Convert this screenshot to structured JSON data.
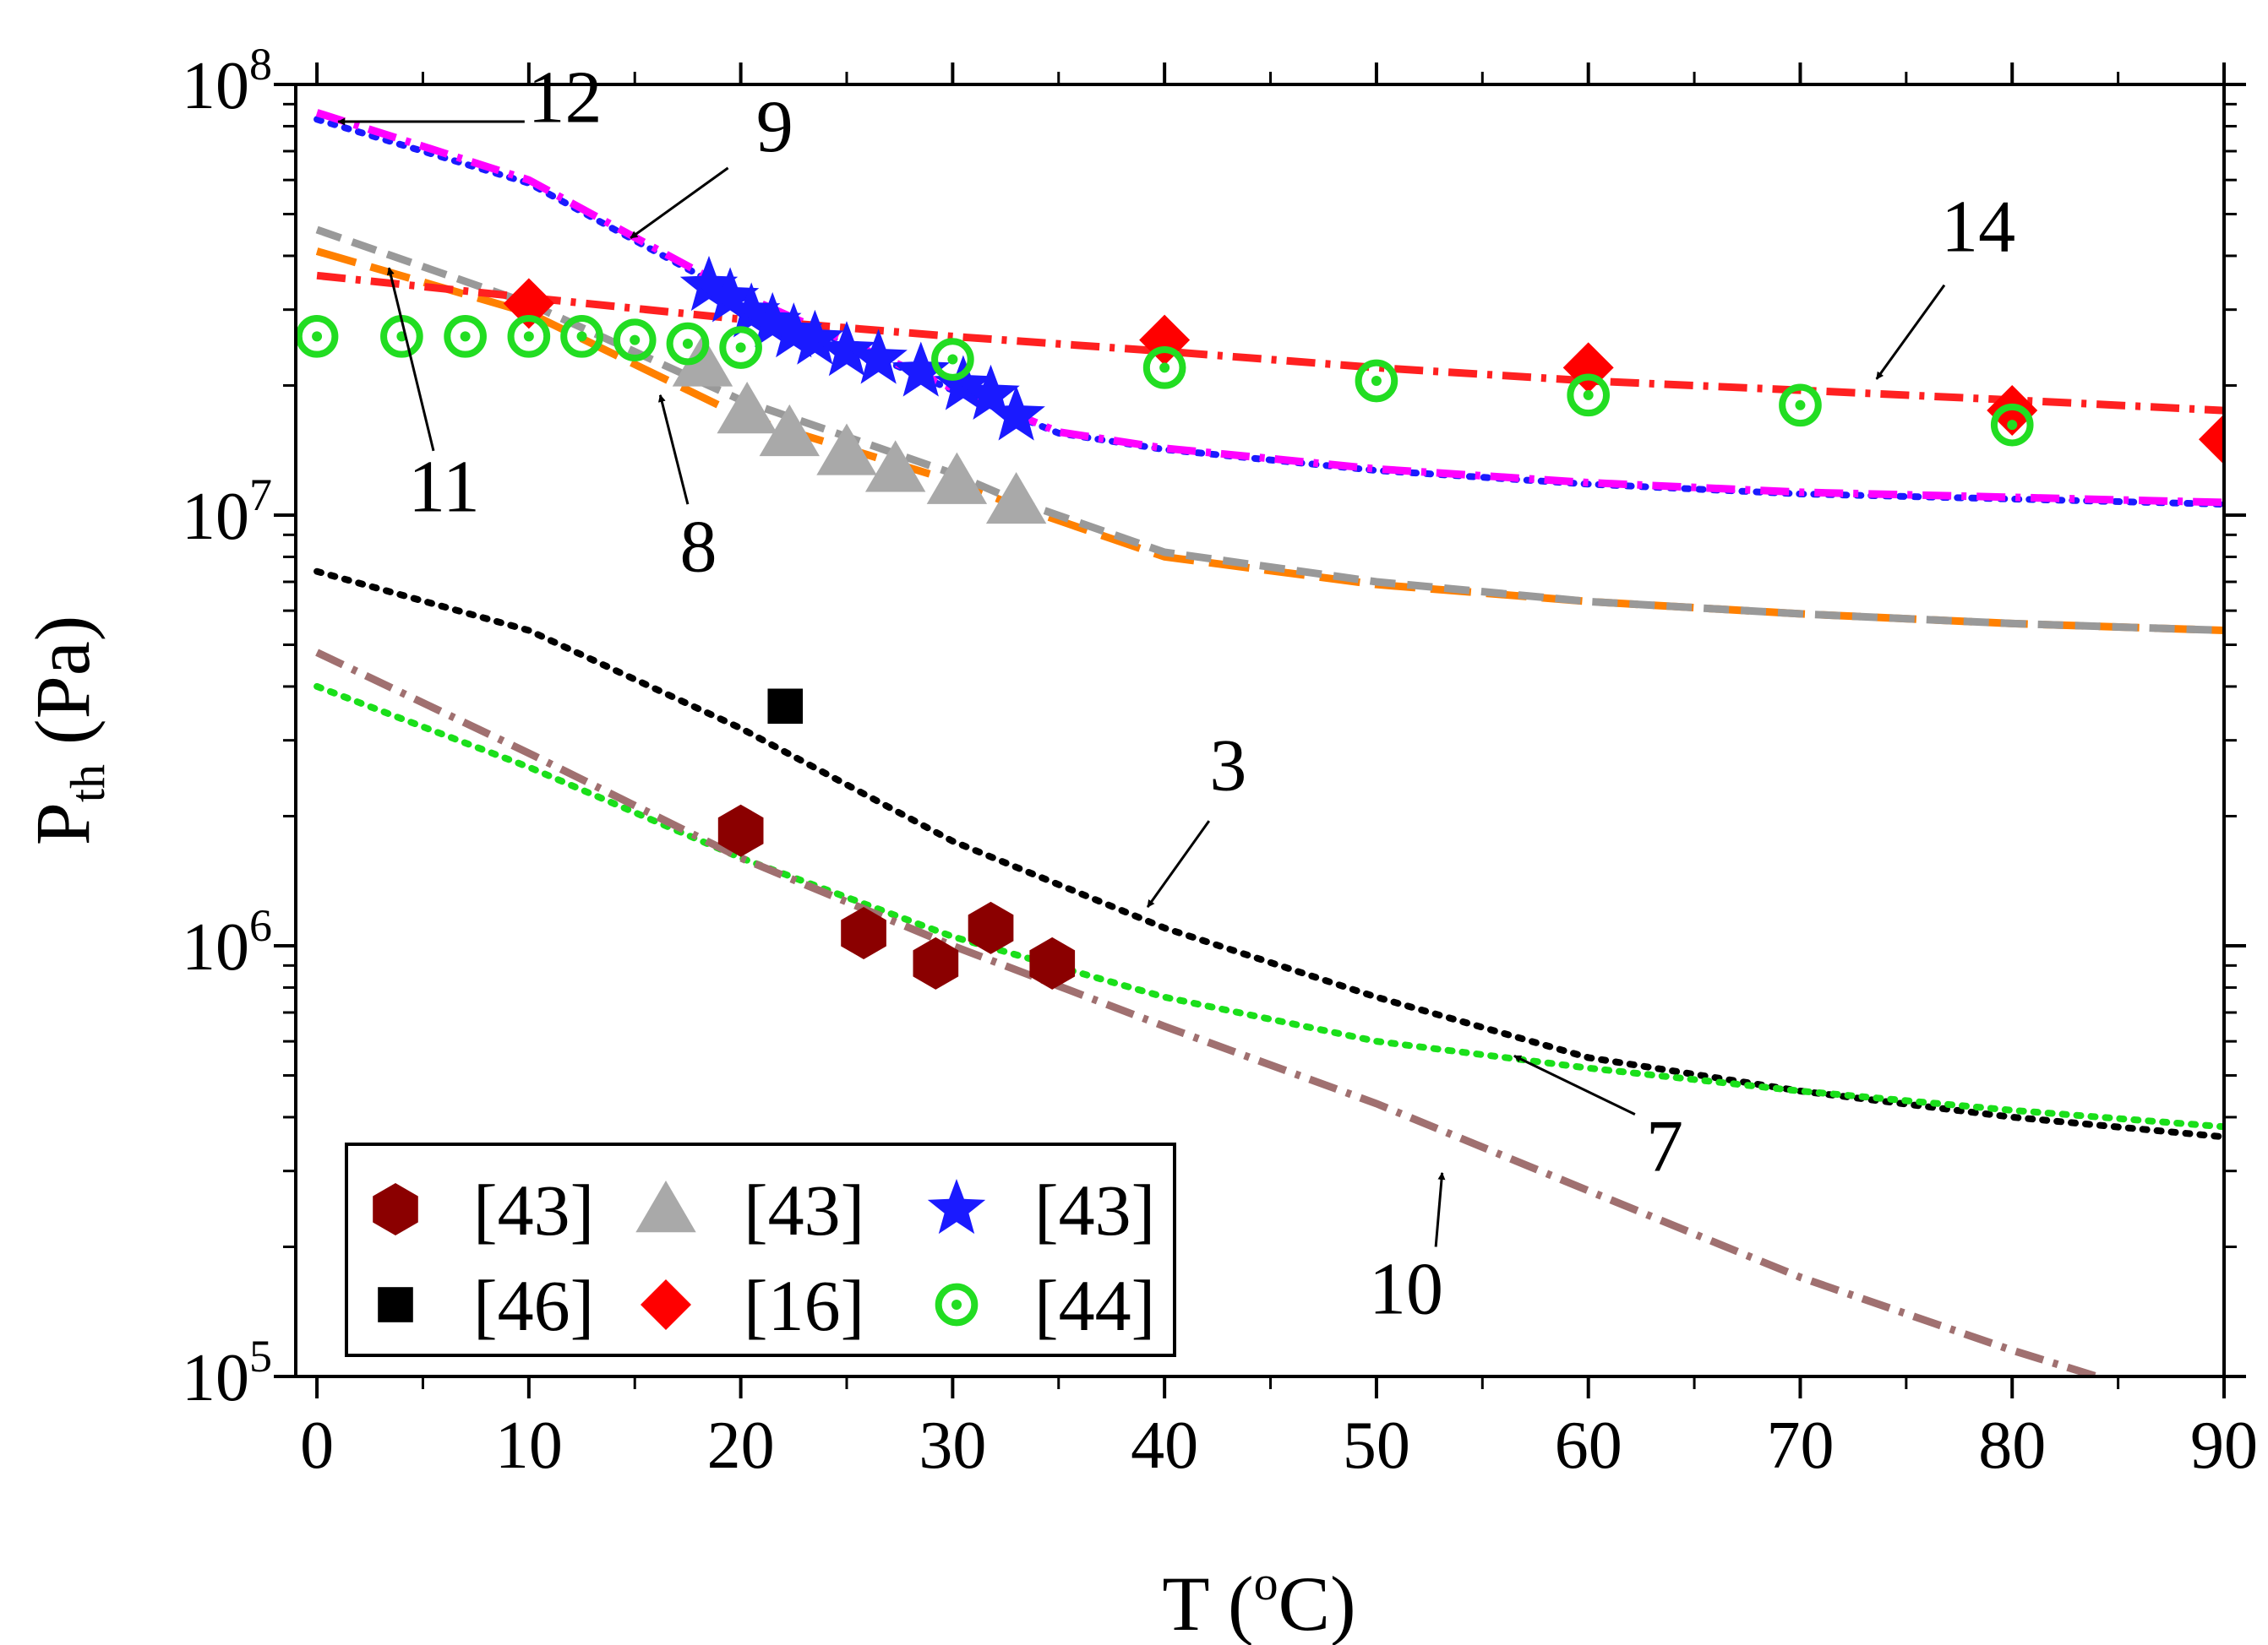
{
  "chart_data": {
    "type": "scatter",
    "xlabel": "T (",
    "xlabel_sup": "o",
    "xlabel_end": "C)",
    "ylabel_main": "P",
    "ylabel_sub": "th",
    "ylabel_end": " (Pa)",
    "xlim": [
      -1,
      90
    ],
    "ylim_log10": [
      5,
      8
    ],
    "x_ticks": [
      0,
      10,
      20,
      30,
      40,
      50,
      60,
      70,
      80,
      90
    ],
    "x_tick_labels": [
      "0",
      "10",
      "20",
      "30",
      "40",
      "50",
      "60",
      "70",
      "80",
      "90"
    ],
    "y_ticks": [
      {
        "exp": 5,
        "base": "10",
        "power": "5"
      },
      {
        "exp": 6,
        "base": "10",
        "power": "6"
      },
      {
        "exp": 7,
        "base": "10",
        "power": "7"
      },
      {
        "exp": 8,
        "base": "10",
        "power": "8"
      }
    ],
    "curves": [
      {
        "id": "3",
        "color": "#000000",
        "style": "dot",
        "points": [
          [
            0,
            7400000.0
          ],
          [
            10,
            5400000.0
          ],
          [
            20,
            3200000.0
          ],
          [
            30,
            1750000.0
          ],
          [
            40,
            1100000.0
          ],
          [
            50,
            760000.0
          ],
          [
            60,
            550000.0
          ],
          [
            70,
            460000.0
          ],
          [
            80,
            400000.0
          ],
          [
            90,
            360000.0
          ]
        ]
      },
      {
        "id": "7",
        "color": "#1adf1a",
        "style": "dot",
        "points": [
          [
            0,
            4000000.0
          ],
          [
            10,
            2600000.0
          ],
          [
            20,
            1600000.0
          ],
          [
            30,
            1050000.0
          ],
          [
            40,
            760000.0
          ],
          [
            50,
            600000.0
          ],
          [
            60,
            520000.0
          ],
          [
            70,
            460000.0
          ],
          [
            80,
            415000.0
          ],
          [
            90,
            380000.0
          ]
        ]
      },
      {
        "id": "10",
        "color": "#a07070",
        "style": "dashdot",
        "points": [
          [
            0,
            4800000.0
          ],
          [
            10,
            2800000.0
          ],
          [
            20,
            1600000.0
          ],
          [
            30,
            1000000.0
          ],
          [
            40,
            650000.0
          ],
          [
            50,
            430000.0
          ],
          [
            60,
            270000.0
          ],
          [
            70,
            170000.0
          ],
          [
            80,
            115000.0
          ],
          [
            84,
            100000.0
          ]
        ]
      },
      {
        "id": "8",
        "color": "#ff8000",
        "style": "longdash",
        "points": [
          [
            0,
            41000000.0
          ],
          [
            10,
            29500000.0
          ],
          [
            20,
            17000000.0
          ],
          [
            30,
            12000000.0
          ],
          [
            33,
            10500000.0
          ],
          [
            40,
            8000000.0
          ],
          [
            50,
            6900000.0
          ],
          [
            60,
            6300000.0
          ],
          [
            70,
            5900000.0
          ],
          [
            80,
            5600000.0
          ],
          [
            90,
            5400000.0
          ]
        ]
      },
      {
        "id": "11",
        "color": "#999999",
        "style": "dash",
        "points": [
          [
            0,
            46000000.0
          ],
          [
            10,
            31000000.0
          ],
          [
            20,
            18500000.0
          ],
          [
            30,
            12500000.0
          ],
          [
            33,
            10800000.0
          ],
          [
            40,
            8200000.0
          ],
          [
            50,
            7000000.0
          ],
          [
            60,
            6300000.0
          ],
          [
            70,
            5900000.0
          ],
          [
            80,
            5600000.0
          ],
          [
            90,
            5400000.0
          ]
        ]
      },
      {
        "id": "12",
        "color": "#1a1aff",
        "style": "dot",
        "points": [
          [
            0,
            83000000.0
          ],
          [
            10,
            59000000.0
          ],
          [
            20,
            32000000.0
          ],
          [
            30,
            19500000.0
          ],
          [
            35,
            15500000.0
          ],
          [
            40,
            14200000.0
          ],
          [
            50,
            12700000.0
          ],
          [
            60,
            11800000.0
          ],
          [
            70,
            11200000.0
          ],
          [
            80,
            10900000.0
          ],
          [
            90,
            10600000.0
          ]
        ]
      },
      {
        "id": "9",
        "color": "#ff00ff",
        "style": "dashdot",
        "points": [
          [
            0,
            86000000.0
          ],
          [
            10,
            60000000.0
          ],
          [
            20,
            32500000.0
          ],
          [
            30,
            19700000.0
          ],
          [
            35,
            15600000.0
          ],
          [
            40,
            14300000.0
          ],
          [
            50,
            12800000.0
          ],
          [
            60,
            11900000.0
          ],
          [
            70,
            11300000.0
          ],
          [
            80,
            11000000.0
          ],
          [
            90,
            10700000.0
          ]
        ]
      },
      {
        "id": "14",
        "color": "#ff2020",
        "style": "dashdot",
        "points": [
          [
            0,
            36000000.0
          ],
          [
            10,
            32000000.0
          ],
          [
            20,
            28500000.0
          ],
          [
            30,
            26000000.0
          ],
          [
            40,
            24000000.0
          ],
          [
            50,
            22000000.0
          ],
          [
            60,
            20500000.0
          ],
          [
            70,
            19500000.0
          ],
          [
            80,
            18500000.0
          ],
          [
            90,
            17500000.0
          ]
        ]
      }
    ],
    "series": [
      {
        "name": "[43]",
        "marker": "hexagon",
        "color": "#8b0000",
        "points": [
          [
            20,
            1850000.0
          ],
          [
            25.8,
            1070000.0
          ],
          [
            29.2,
            910000.0
          ],
          [
            31.8,
            1100000.0
          ],
          [
            34.7,
            910000.0
          ]
        ]
      },
      {
        "name": "[43]",
        "marker": "triangle",
        "color": "#a9a9a9",
        "points": [
          [
            18.2,
            22500000.0
          ],
          [
            20.3,
            17500000.0
          ],
          [
            22.3,
            15500000.0
          ],
          [
            25,
            14000000.0
          ],
          [
            27.3,
            12800000.0
          ],
          [
            30.2,
            12000000.0
          ],
          [
            33,
            10800000.0
          ]
        ]
      },
      {
        "name": "[43]",
        "marker": "star",
        "color": "#1a1aff",
        "points": [
          [
            18.5,
            34000000.0
          ],
          [
            19.5,
            32000000.0
          ],
          [
            20.5,
            29500000.0
          ],
          [
            21.5,
            28000000.0
          ],
          [
            22.5,
            26500000.0
          ],
          [
            23.5,
            25500000.0
          ],
          [
            25,
            24000000.0
          ],
          [
            26.5,
            23000000.0
          ],
          [
            28.5,
            21500000.0
          ],
          [
            30.5,
            20000000.0
          ],
          [
            31.8,
            19000000.0
          ],
          [
            33,
            17000000.0
          ]
        ]
      },
      {
        "name": "[46]",
        "marker": "square",
        "color": "#000000",
        "points": [
          [
            22.1,
            3600000.0
          ]
        ]
      },
      {
        "name": "[16]",
        "marker": "diamond",
        "color": "#ff0000",
        "points": [
          [
            10,
            31000000.0
          ],
          [
            40,
            25500000.0
          ],
          [
            60,
            22000000.0
          ],
          [
            80,
            17500000.0
          ],
          [
            90,
            15000000.0
          ]
        ]
      },
      {
        "name": "[44]",
        "marker": "bullseye",
        "color": "#22dd22",
        "points": [
          [
            0,
            26000000.0
          ],
          [
            4,
            26000000.0
          ],
          [
            7,
            26000000.0
          ],
          [
            10,
            26000000.0
          ],
          [
            12.5,
            26000000.0
          ],
          [
            15,
            25500000.0
          ],
          [
            17.5,
            25000000.0
          ],
          [
            20,
            24500000.0
          ],
          [
            30,
            23000000.0
          ],
          [
            40,
            22000000.0
          ],
          [
            50,
            20500000.0
          ],
          [
            60,
            19000000.0
          ],
          [
            70,
            18000000.0
          ],
          [
            80,
            16200000.0
          ]
        ]
      }
    ],
    "annotations": [
      {
        "text": "12",
        "text_at": [
          11.7,
          81800000.0
        ],
        "arrow_from": [
          9.8,
          82000000.0
        ],
        "arrow_to": [
          1.0,
          82000000.0
        ]
      },
      {
        "text": "9",
        "text_at": [
          21.6,
          70000000.0
        ],
        "arrow_from": [
          19.4,
          64000000.0
        ],
        "arrow_to": [
          14.8,
          44000000.0
        ]
      },
      {
        "text": "14",
        "text_at": [
          78.4,
          41000000.0
        ],
        "arrow_from": [
          76.8,
          34200000.0
        ],
        "arrow_to": [
          73.6,
          20700000.0
        ]
      },
      {
        "text": "11",
        "text_at": [
          6.0,
          10200000.0
        ],
        "arrow_from": [
          5.5,
          14100000.0
        ],
        "arrow_to": [
          3.4,
          37500000.0
        ]
      },
      {
        "text": "8",
        "text_at": [
          18.0,
          7400000.0
        ],
        "arrow_from": [
          17.5,
          10600000.0
        ],
        "arrow_to": [
          16.2,
          19000000.0
        ]
      },
      {
        "text": "3",
        "text_at": [
          43.0,
          2300000.0
        ],
        "arrow_from": [
          42.1,
          1950000.0
        ],
        "arrow_to": [
          39.2,
          1230000.0
        ]
      },
      {
        "text": "7",
        "text_at": [
          63.6,
          300000.0
        ],
        "arrow_from": [
          62.2,
          406000.0
        ],
        "arrow_to": [
          56.5,
          555000.0
        ]
      },
      {
        "text": "10",
        "text_at": [
          51.4,
          140000.0
        ],
        "arrow_from": [
          52.8,
          200000.0
        ],
        "arrow_to": [
          53.1,
          297000.0
        ]
      }
    ]
  }
}
